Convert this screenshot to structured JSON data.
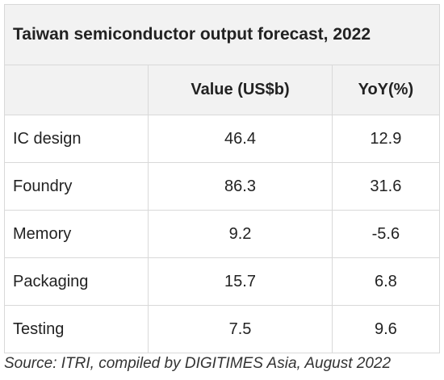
{
  "chart_data": {
    "type": "table",
    "title": "Taiwan semiconductor output forecast, 2022",
    "columns": [
      "",
      "Value (US$b)",
      "YoY(%)"
    ],
    "rows": [
      {
        "label": "IC design",
        "value": "46.4",
        "yoy": "12.9"
      },
      {
        "label": "Foundry",
        "value": "86.3",
        "yoy": "31.6"
      },
      {
        "label": "Memory",
        "value": "9.2",
        "yoy": "-5.6"
      },
      {
        "label": "Packaging",
        "value": "15.7",
        "yoy": "6.8"
      },
      {
        "label": "Testing",
        "value": "7.5",
        "yoy": "9.6"
      }
    ],
    "source": "Source: ITRI, compiled by DIGITIMES Asia, August 2022"
  }
}
